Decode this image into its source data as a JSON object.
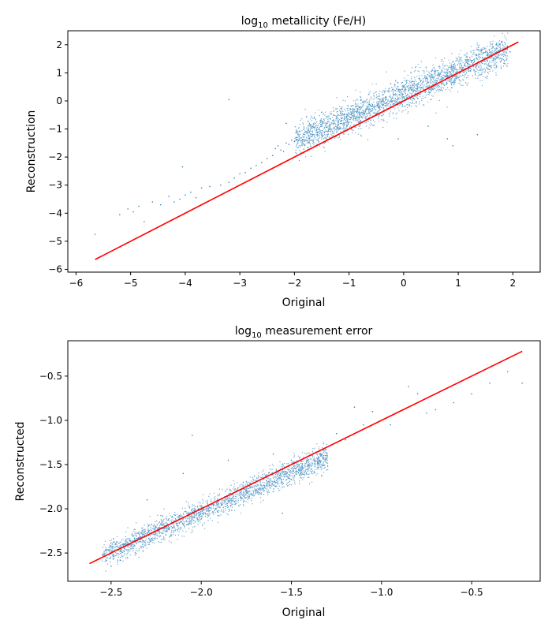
{
  "chart_data": [
    {
      "type": "scatter",
      "title": "log10 metallicity (Fe/H)",
      "title_base": "log",
      "title_sub": "10",
      "title_rest": " metallicity (Fe/H)",
      "xlabel": "Original",
      "ylabel": "Reconstruction",
      "xlim": [
        -6.15,
        2.5
      ],
      "ylim": [
        -6.1,
        2.5
      ],
      "xticks": [
        -6,
        -5,
        -4,
        -3,
        -2,
        -1,
        0,
        1,
        2
      ],
      "yticks": [
        -6,
        -5,
        -4,
        -3,
        -2,
        -1,
        0,
        1,
        2
      ],
      "xtick_labels": [
        "−6",
        "−5",
        "−4",
        "−3",
        "−2",
        "−1",
        "0",
        "1",
        "2"
      ],
      "ytick_labels": [
        "−6",
        "−5",
        "−4",
        "−3",
        "−2",
        "−1",
        "0",
        "1",
        "2"
      ],
      "point_color": "#1f77b4",
      "line_color": "#ff0000",
      "grid": false,
      "reference_line": {
        "x": [
          -5.65,
          2.1
        ],
        "y": [
          -5.65,
          2.1
        ]
      },
      "points": [
        [
          -5.65,
          -4.75
        ],
        [
          -5.2,
          -4.05
        ],
        [
          -5.05,
          -3.85
        ],
        [
          -4.95,
          -3.95
        ],
        [
          -4.85,
          -3.75
        ],
        [
          -4.75,
          -4.3
        ],
        [
          -4.6,
          -3.6
        ],
        [
          -4.45,
          -3.7
        ],
        [
          -4.3,
          -3.4
        ],
        [
          -4.2,
          -3.6
        ],
        [
          -4.1,
          -3.5
        ],
        [
          -4.0,
          -3.35
        ],
        [
          -3.9,
          -3.25
        ],
        [
          -3.8,
          -3.45
        ],
        [
          -3.7,
          -3.1
        ],
        [
          -3.55,
          -3.05
        ],
        [
          -3.35,
          -3.0
        ],
        [
          -3.2,
          -2.9
        ],
        [
          -3.1,
          -2.75
        ],
        [
          -3.0,
          -2.6
        ],
        [
          -2.9,
          -2.55
        ],
        [
          -2.8,
          -2.4
        ],
        [
          -2.7,
          -2.3
        ],
        [
          -2.6,
          -2.2
        ],
        [
          -2.5,
          -2.05
        ],
        [
          -2.4,
          -1.95
        ],
        [
          -2.35,
          -1.7
        ],
        [
          -2.3,
          -1.6
        ],
        [
          -2.25,
          -1.75
        ],
        [
          -2.2,
          -1.8
        ],
        [
          -2.15,
          -1.5
        ],
        [
          -2.1,
          -1.55
        ],
        [
          -2.05,
          -1.4
        ],
        [
          -2.0,
          -1.45
        ],
        [
          -1.95,
          -1.3
        ],
        [
          -4.05,
          -2.35
        ],
        [
          -3.2,
          0.05
        ],
        [
          -2.15,
          -0.8
        ],
        [
          -1.5,
          -0.4
        ],
        [
          0.9,
          -1.6
        ],
        [
          0.8,
          -1.35
        ],
        [
          1.35,
          -1.2
        ],
        [
          0.45,
          -0.9
        ],
        [
          -0.1,
          -1.35
        ],
        [
          1.5,
          1.75
        ],
        [
          1.7,
          2.0
        ],
        [
          1.8,
          2.1
        ],
        [
          1.9,
          1.95
        ],
        [
          1.95,
          1.75
        ]
      ],
      "band": {
        "x_from": -2.0,
        "x_to": 1.9,
        "center_offset_at_start": 0.6,
        "center_offset_at_end": -0.05,
        "spread": 0.28,
        "count": 2600
      }
    },
    {
      "type": "scatter",
      "title": "log10 measurement error",
      "title_base": "log",
      "title_sub": "10",
      "title_rest": " measurement error",
      "xlabel": "Original",
      "ylabel": "Reconstructed",
      "xlim": [
        -2.74,
        -0.12
      ],
      "ylim": [
        -2.82,
        -0.1
      ],
      "xticks": [
        -2.5,
        -2.0,
        -1.5,
        -1.0,
        -0.5
      ],
      "yticks": [
        -2.5,
        -2.0,
        -1.5,
        -1.0,
        -0.5
      ],
      "xtick_labels": [
        "−2.5",
        "−2.0",
        "−1.5",
        "−1.0",
        "−0.5"
      ],
      "ytick_labels": [
        "−2.5",
        "−2.0",
        "−1.5",
        "−1.0",
        "−0.5"
      ],
      "point_color": "#1f77b4",
      "line_color": "#ff0000",
      "grid": false,
      "reference_line": {
        "x": [
          -2.62,
          -0.22
        ],
        "y": [
          -2.62,
          -0.22
        ]
      },
      "points": [
        [
          -2.5,
          -2.65
        ],
        [
          -2.45,
          -2.58
        ],
        [
          -2.3,
          -1.9
        ],
        [
          -2.1,
          -1.6
        ],
        [
          -2.05,
          -1.17
        ],
        [
          -1.85,
          -1.45
        ],
        [
          -1.6,
          -1.38
        ],
        [
          -1.55,
          -2.05
        ],
        [
          -1.5,
          -1.45
        ],
        [
          -1.45,
          -1.55
        ],
        [
          -1.35,
          -1.35
        ],
        [
          -1.25,
          -1.15
        ],
        [
          -1.2,
          -1.22
        ],
        [
          -1.1,
          -1.05
        ],
        [
          -1.05,
          -0.9
        ],
        [
          -0.95,
          -1.05
        ],
        [
          -0.85,
          -0.62
        ],
        [
          -0.8,
          -0.7
        ],
        [
          -0.75,
          -0.92
        ],
        [
          -0.7,
          -0.88
        ],
        [
          -0.6,
          -0.8
        ],
        [
          -0.5,
          -0.7
        ],
        [
          -0.4,
          -0.58
        ],
        [
          -0.3,
          -0.45
        ],
        [
          -0.22,
          -0.58
        ],
        [
          -1.15,
          -0.85
        ]
      ],
      "band": {
        "x_from": -2.55,
        "x_to": -1.3,
        "center_offset_at_start": 0.02,
        "center_offset_at_end": -0.1,
        "spread": 0.07,
        "count": 2200
      }
    }
  ]
}
